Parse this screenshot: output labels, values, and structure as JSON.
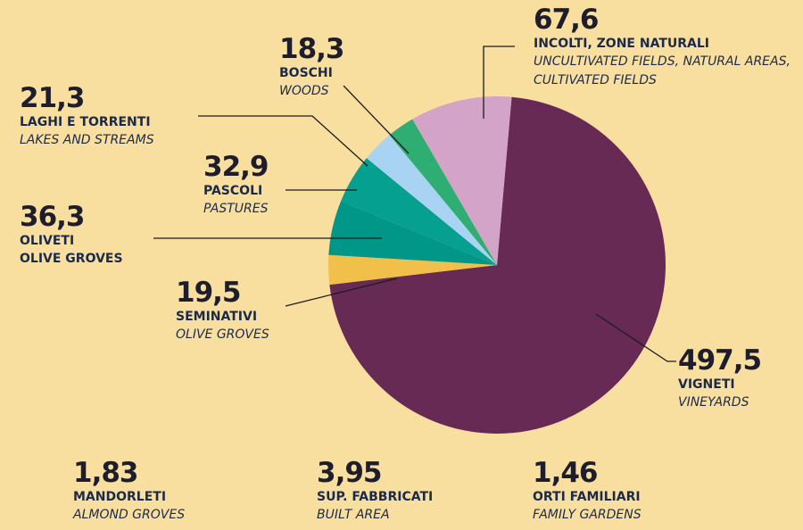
{
  "chart_data": {
    "type": "pie",
    "categories": [
      "VIGNETI",
      "SEMINATIVI",
      "OLIVETI",
      "PASCOLI",
      "LAGHI E TORRENTI",
      "BOSCHI",
      "INCOLTI, ZONE NATURALI"
    ],
    "translations": [
      "VINEYARDS",
      "OLIVE GROVES",
      "OLIVE GROVES",
      "PASTURES",
      "LAKES AND STREAMS",
      "WOODS",
      "UNCULTIVATED FIELDS, NATURAL AREAS, CULTIVATED FIELDS"
    ],
    "values": [
      497.5,
      19.5,
      36.3,
      32.9,
      21.3,
      18.3,
      67.6
    ],
    "value_labels": [
      "497,5",
      "19,5",
      "36,3",
      "32,9",
      "21,3",
      "18,3",
      "67,6"
    ],
    "colors": [
      "#662a55",
      "#f1c04a",
      "#009688",
      "#05a08f",
      "#a9d3f2",
      "#2fae74",
      "#d3a3c8"
    ],
    "extra": {
      "categories": [
        "MANDORLETI",
        "SUP. FABBRICATI",
        "ORTI FAMILIARI"
      ],
      "translations": [
        "ALMOND GROVES",
        "BUILT AREA",
        "FAMILY GARDENS"
      ],
      "values": [
        1.83,
        3.95,
        1.46
      ],
      "value_labels": [
        "1,83",
        "3,95",
        "1,46"
      ]
    }
  }
}
